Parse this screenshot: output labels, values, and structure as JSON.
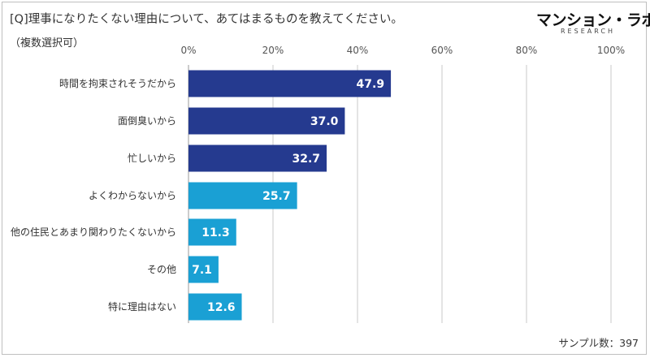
{
  "header": {
    "title": "[Q]理事になりたくない理由について、あてはまるものを教えてください。",
    "subtitle": "（複数選択可）"
  },
  "logo": {
    "main": "マンション・ラボ",
    "sub": "RESEARCH"
  },
  "footer": {
    "sample_label": "サンプル数：397"
  },
  "chart_data": {
    "type": "bar",
    "orientation": "horizontal",
    "title": "",
    "xlabel": "",
    "ylabel": "",
    "xlim": [
      0,
      100
    ],
    "x_ticks": [
      "0%",
      "20%",
      "40%",
      "60%",
      "80%",
      "100%"
    ],
    "x_tick_values": [
      0,
      20,
      40,
      60,
      80,
      100
    ],
    "grid": true,
    "categories": [
      "時間を拘束されそうだから",
      "面倒臭いから",
      "忙しいから",
      "よくわからないから",
      "他の住民とあまり関わりたくないから",
      "その他",
      "特に理由はない"
    ],
    "values": [
      47.9,
      37.0,
      32.7,
      25.7,
      11.3,
      7.1,
      12.6
    ],
    "value_labels": [
      "47.9",
      "37.0",
      "32.7",
      "25.7",
      "11.3",
      "7.1",
      "12.6"
    ],
    "colors": [
      "#253a8f",
      "#253a8f",
      "#253a8f",
      "#1aa0d4",
      "#1aa0d4",
      "#1aa0d4",
      "#1aa0d4"
    ],
    "grid_color": "#c8c8c8",
    "axis_color": "#999999"
  }
}
